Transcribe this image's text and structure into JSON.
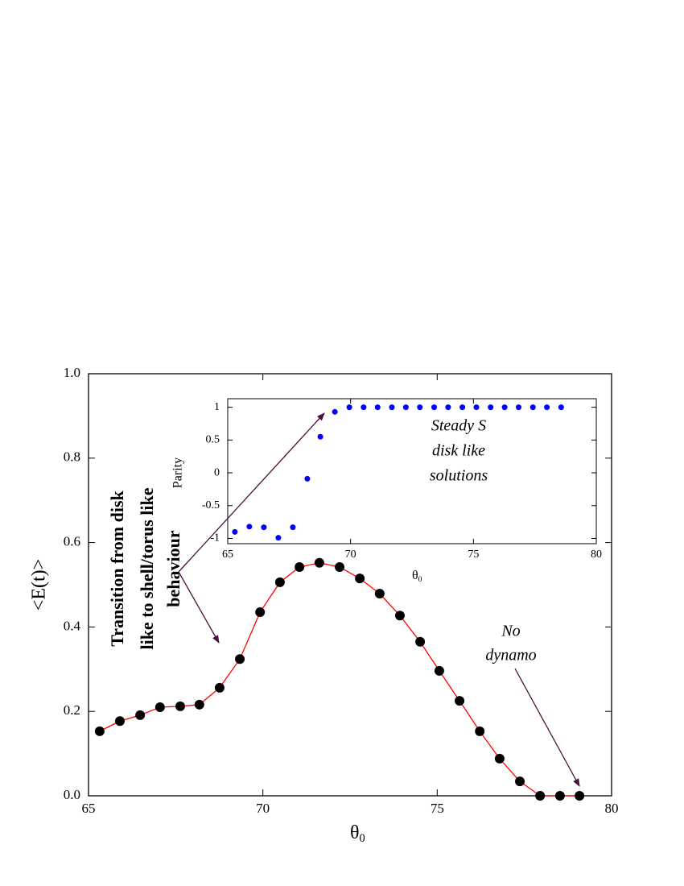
{
  "chart_data": [
    {
      "type": "line",
      "ylabel": "<E(t)>",
      "xlabel": {
        "text": "θ",
        "subscript": "0"
      },
      "x": [
        65.32,
        65.9,
        66.48,
        67.05,
        67.63,
        68.18,
        68.76,
        69.34,
        69.92,
        70.49,
        71.05,
        71.62,
        72.2,
        72.78,
        73.35,
        73.93,
        74.51,
        75.06,
        75.64,
        76.22,
        76.79,
        77.37,
        77.95,
        78.52,
        79.08
      ],
      "values": [
        0.153,
        0.177,
        0.191,
        0.21,
        0.212,
        0.216,
        0.256,
        0.324,
        0.435,
        0.506,
        0.542,
        0.552,
        0.542,
        0.515,
        0.479,
        0.427,
        0.365,
        0.296,
        0.225,
        0.153,
        0.088,
        0.034,
        0,
        0,
        0
      ],
      "color": "#000000",
      "line_color": "#ff0000",
      "xlim": [
        65,
        80
      ],
      "xticks": [
        65,
        70,
        75,
        80
      ],
      "ylim": [
        0,
        1
      ],
      "yticks": [
        {
          "value": 0,
          "label": "0.0"
        },
        0.2,
        0.4,
        0.6,
        0.8,
        {
          "value": 1,
          "label": "1.0"
        }
      ],
      "annotations": [
        {
          "lines": [
            "Transition from disk",
            "like to shell/torus like",
            "behaviour"
          ]
        },
        {
          "lines": [
            "No",
            "dynamo"
          ]
        }
      ]
    },
    {
      "type": "scatter",
      "ylabel": "Parity",
      "xlabel": {
        "text": "θ",
        "subscript": "0"
      },
      "x": [
        65.29,
        65.88,
        66.47,
        67.06,
        67.65,
        68.24,
        68.77,
        69.36,
        69.95,
        70.53,
        71.1,
        71.68,
        72.25,
        72.82,
        73.4,
        73.97,
        74.55,
        75.12,
        75.7,
        76.27,
        76.84,
        77.42,
        77.99,
        78.57
      ],
      "values": [
        -0.9,
        -0.82,
        -0.83,
        -0.99,
        -0.83,
        -0.09,
        0.55,
        0.93,
        1,
        1,
        1,
        1,
        1,
        1,
        1,
        1,
        1,
        1,
        1,
        1,
        1,
        1,
        1,
        1
      ],
      "color": "#0000ff",
      "xlim": [
        65,
        80
      ],
      "xticks": [
        65,
        70,
        75,
        80
      ],
      "ylim": [
        -1.08,
        1.13
      ],
      "yticks": [
        -1,
        -0.5,
        0,
        0.5,
        1
      ],
      "annotations": [
        {
          "lines": [
            "Steady S",
            "disk like",
            "solutions"
          ]
        }
      ]
    }
  ]
}
